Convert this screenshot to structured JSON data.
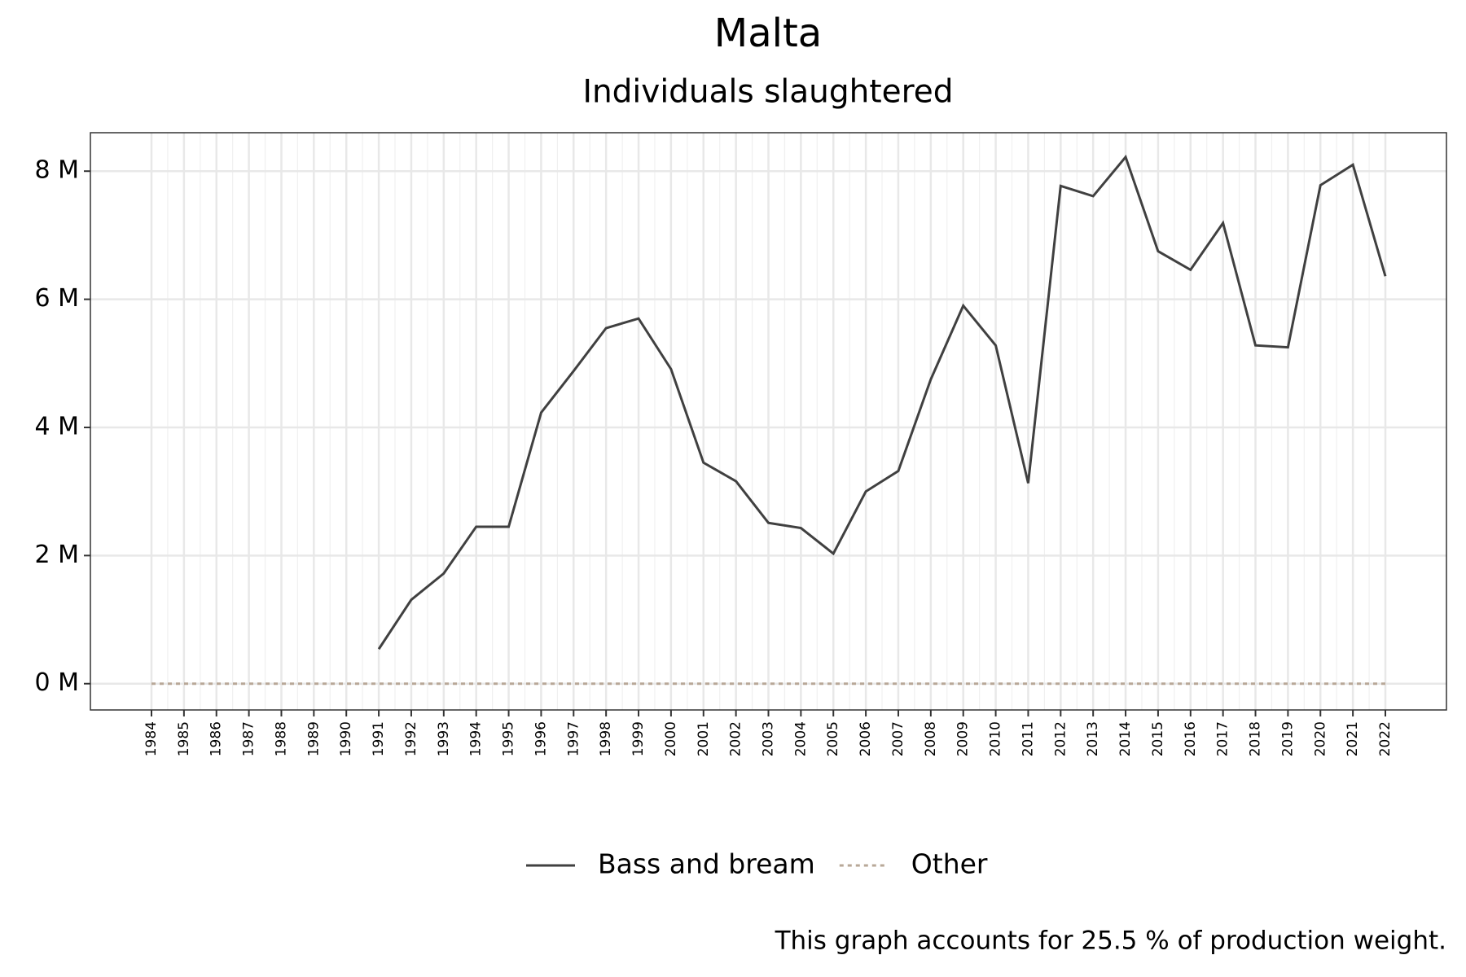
{
  "chart_data": {
    "type": "line",
    "title": "Malta",
    "subtitle": "Individuals slaughtered",
    "caption": "This graph accounts for 25.5 % of production weight.",
    "categories": [
      "1984",
      "1985",
      "1986",
      "1987",
      "1988",
      "1989",
      "1990",
      "1991",
      "1992",
      "1993",
      "1994",
      "1995",
      "1996",
      "1997",
      "1998",
      "1999",
      "2000",
      "2001",
      "2002",
      "2003",
      "2004",
      "2005",
      "2006",
      "2007",
      "2008",
      "2009",
      "2010",
      "2011",
      "2012",
      "2013",
      "2014",
      "2015",
      "2016",
      "2017",
      "2018",
      "2019",
      "2020",
      "2021",
      "2022"
    ],
    "series": [
      {
        "name": "Bass and bream",
        "color": "#404040",
        "dash": false,
        "values": [
          null,
          null,
          null,
          null,
          null,
          null,
          null,
          0.54,
          1.31,
          1.72,
          2.45,
          2.45,
          4.23,
          4.88,
          5.55,
          5.7,
          4.91,
          3.45,
          3.16,
          2.51,
          2.43,
          2.03,
          3.0,
          3.32,
          4.75,
          5.9,
          5.28,
          3.13,
          7.77,
          7.61,
          8.22,
          6.75,
          6.46,
          7.19,
          5.28,
          5.25,
          7.78,
          8.1,
          6.36
        ]
      },
      {
        "name": "Other",
        "color": "#b8a898",
        "dash": true,
        "values": [
          0,
          0,
          0,
          0,
          0,
          0,
          0,
          0,
          0,
          0,
          0,
          0,
          0,
          0,
          0,
          0,
          0,
          0,
          0,
          0,
          0,
          0,
          0,
          0,
          0,
          0,
          0,
          0,
          0,
          0,
          0,
          0,
          0,
          0,
          0,
          0,
          0,
          0,
          0
        ]
      }
    ],
    "ylim": [
      -0.41,
      8.6
    ],
    "yticks": [
      {
        "value": 0,
        "label": "0 M"
      },
      {
        "value": 2,
        "label": "2 M"
      },
      {
        "value": 4,
        "label": "4 M"
      },
      {
        "value": 6,
        "label": "6 M"
      },
      {
        "value": 8,
        "label": "8 M"
      }
    ],
    "grid": true,
    "legend": "bottom"
  }
}
